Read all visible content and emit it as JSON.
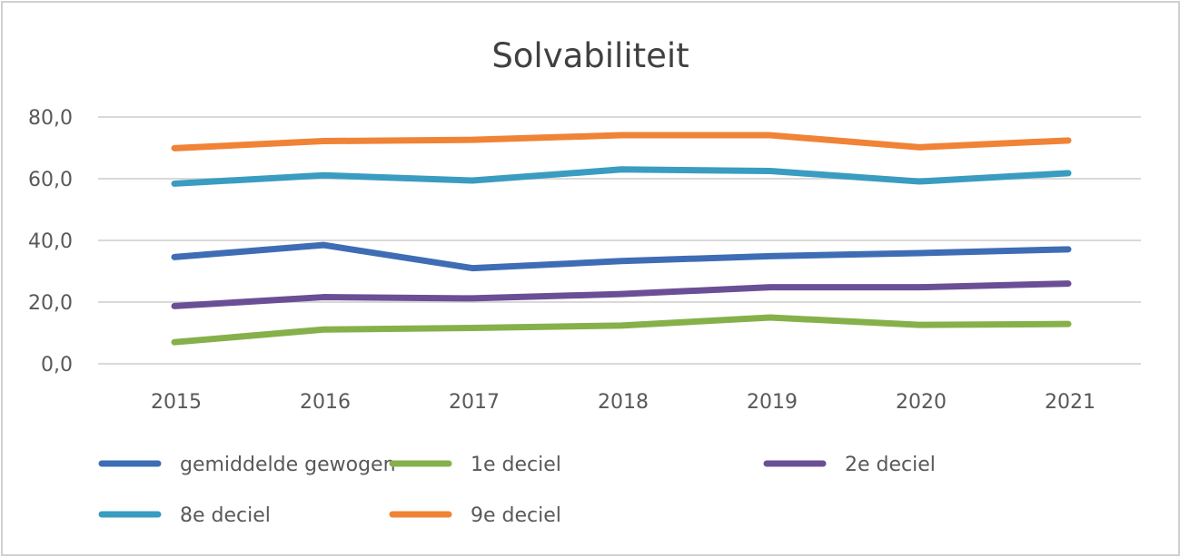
{
  "chart_data": {
    "type": "line",
    "title": "Solvabiliteit",
    "xlabel": "",
    "ylabel": "",
    "categories": [
      "2015",
      "2016",
      "2017",
      "2018",
      "2019",
      "2020",
      "2021"
    ],
    "ylim": [
      0,
      80
    ],
    "yticks": [
      0,
      20,
      40,
      60,
      80
    ],
    "ytick_labels": [
      "0,0",
      "20,0",
      "40,0",
      "60,0",
      "80,0"
    ],
    "grid": true,
    "legend_position": "bottom",
    "series": [
      {
        "name": "gemiddelde gewogen",
        "color": "#3e6db5",
        "values": [
          34.6,
          38.5,
          31.0,
          33.3,
          34.9,
          35.9,
          37.1
        ]
      },
      {
        "name": "1e deciel",
        "color": "#86b04a",
        "values": [
          7.0,
          11.1,
          11.6,
          12.4,
          15.0,
          12.6,
          12.9
        ]
      },
      {
        "name": "2e deciel",
        "color": "#6b4f96",
        "values": [
          18.7,
          21.6,
          21.2,
          22.6,
          24.8,
          24.8,
          26.0
        ]
      },
      {
        "name": "8e deciel",
        "color": "#3a9cc0",
        "values": [
          58.4,
          61.1,
          59.4,
          63.0,
          62.5,
          59.1,
          61.8
        ]
      },
      {
        "name": "9e deciel",
        "color": "#f08336",
        "values": [
          69.9,
          72.2,
          72.6,
          74.1,
          74.1,
          70.2,
          72.4
        ]
      }
    ]
  }
}
